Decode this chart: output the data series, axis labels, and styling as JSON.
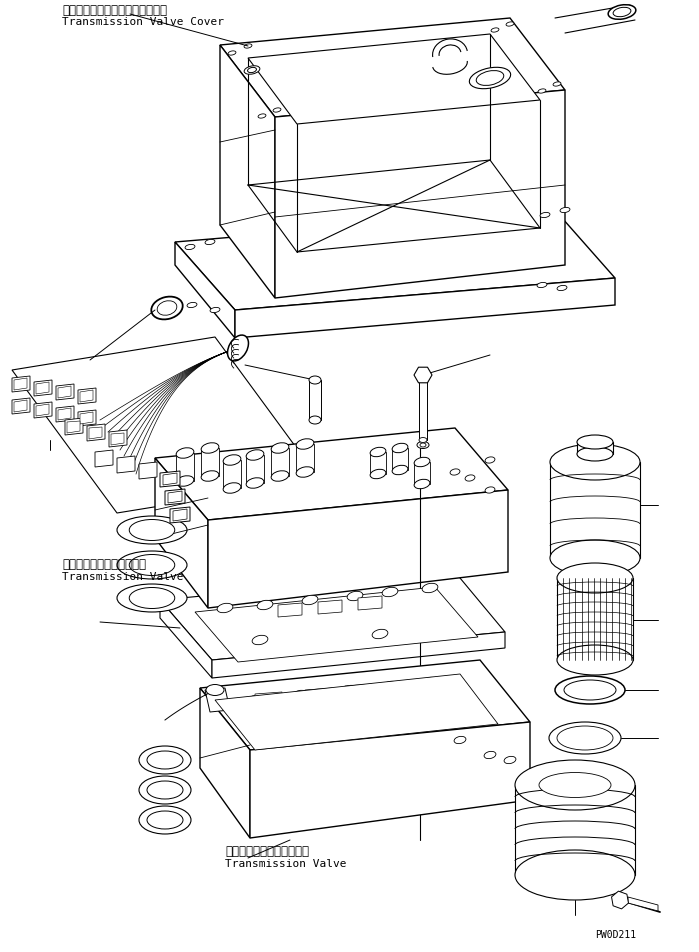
{
  "background_color": "#ffffff",
  "part_code": "PW0D211",
  "line_color": "#000000",
  "lw": 0.8,
  "labels": {
    "cover_jp": "トランスミッションバルブカバー",
    "cover_en": "Transmission Valve Cover",
    "valve1_jp": "トランスミッションバルブ",
    "valve1_en": "Transmission Valve",
    "valve2_jp": "トランスミッションバルブ",
    "valve2_en": "Transmission Valve"
  },
  "fig_width": 6.99,
  "fig_height": 9.52
}
